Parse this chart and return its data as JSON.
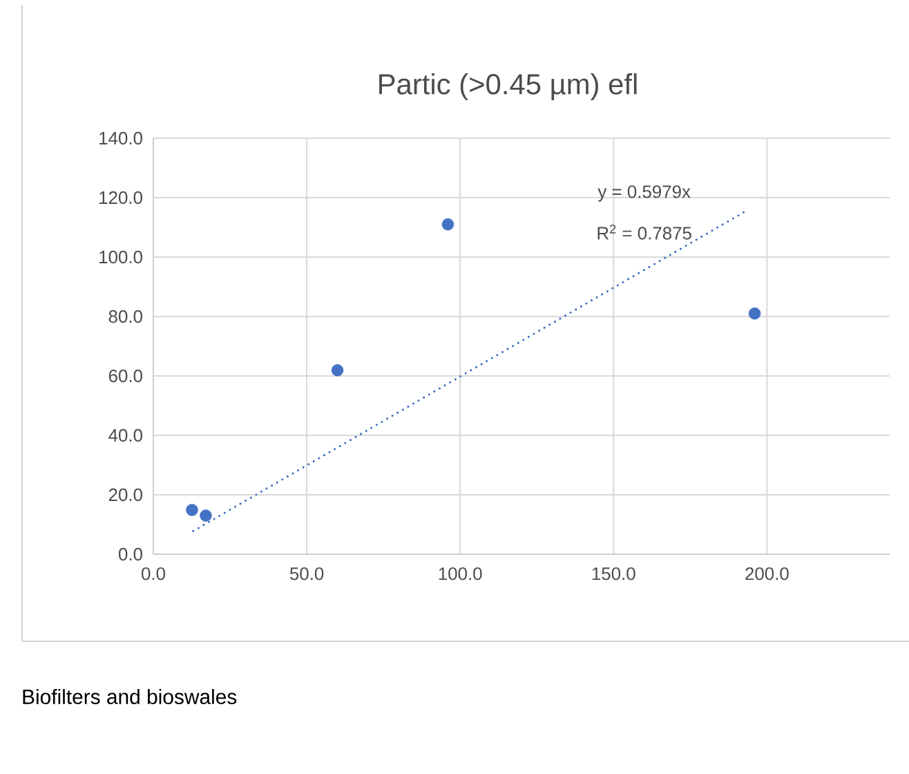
{
  "chart_data": {
    "type": "scatter",
    "title": "Partic (>0.45 µm) efl",
    "series": [
      {
        "color": "#4472c4",
        "marker": "circle",
        "x": [
          12.6,
          17.1,
          60.0,
          96.0,
          196.0
        ],
        "values": [
          14.9,
          13.0,
          61.9,
          111.0,
          81.0
        ]
      },
      {
        "type": "line",
        "color": "#4472c4",
        "marker": "none",
        "line_style": "dotted",
        "x": [
          13.0,
          194.0
        ],
        "values": [
          7.8,
          116.0
        ]
      }
    ],
    "xlim": [
      0,
      240
    ],
    "xticks": [
      {
        "value": 0,
        "label": "0.0"
      },
      {
        "value": 50,
        "label": "50.0"
      },
      {
        "value": 100,
        "label": "100.0"
      },
      {
        "value": 150,
        "label": "150.0"
      },
      {
        "value": 200,
        "label": "200.0"
      }
    ],
    "ylim": [
      0,
      140
    ],
    "yticks": [
      {
        "value": 0,
        "label": "0.0"
      },
      {
        "value": 20,
        "label": "20.0"
      },
      {
        "value": 40,
        "label": "40.0"
      },
      {
        "value": 60,
        "label": "60.0"
      },
      {
        "value": 80,
        "label": "80.0"
      },
      {
        "value": 100,
        "label": "100.0"
      },
      {
        "value": 120,
        "label": "120.0"
      },
      {
        "value": 140,
        "label": "140.0"
      }
    ],
    "grid": true,
    "annotations": [
      "y = 0.5979x",
      "R$^{2}$ = 0.7875",
      "Biofilters and bioswales"
    ]
  }
}
